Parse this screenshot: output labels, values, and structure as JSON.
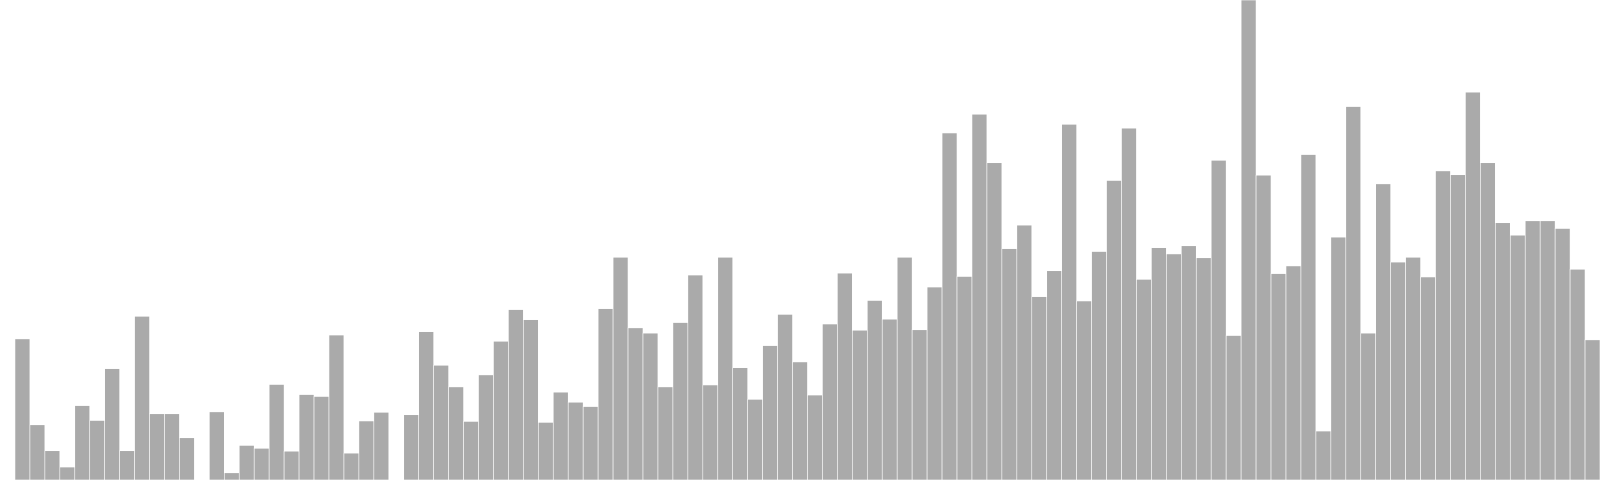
{
  "chart_data": {
    "type": "bar",
    "title": "",
    "xlabel": "",
    "ylabel": "",
    "grid": false,
    "legend": "none",
    "bar_color": "#aaaaaa",
    "bar_edge_color": "#ffffff",
    "ylim": [
      0,
      100
    ],
    "values": [
      0,
      29.4,
      11.5,
      6.1,
      2.7,
      15.5,
      12.4,
      23.2,
      6.1,
      34.1,
      13.8,
      13.8,
      8.8,
      0,
      14.2,
      1.5,
      7.2,
      6.6,
      19.9,
      6.0,
      17.8,
      17.4,
      30.2,
      5.6,
      12.3,
      14.1,
      0,
      13.6,
      30.9,
      23.9,
      19.4,
      12.2,
      21.9,
      28.9,
      35.5,
      33.4,
      12.0,
      18.3,
      16.2,
      15.3,
      35.7,
      46.4,
      31.7,
      30.6,
      19.4,
      32.8,
      42.7,
      19.8,
      46.4,
      23.4,
      16.8,
      28.0,
      34.5,
      24.6,
      17.7,
      32.5,
      43.1,
      31.2,
      37.4,
      33.5,
      46.4,
      31.3,
      40.2,
      72.3,
      42.4,
      76.2,
      66.1,
      48.2,
      53.1,
      38.2,
      43.6,
      74.1,
      37.3,
      47.6,
      62.4,
      73.3,
      41.8,
      48.4,
      47.1,
      48.8,
      46.3,
      66.6,
      30.1,
      100,
      63.5,
      43.0,
      44.6,
      67.8,
      10.2,
      50.6,
      77.8,
      30.6,
      61.7,
      45.4,
      46.4,
      42.3,
      64.4,
      63.6,
      80.8,
      66.1,
      53.6,
      51.0,
      54.0,
      54.0,
      52.4,
      43.9,
      29.2
    ]
  }
}
